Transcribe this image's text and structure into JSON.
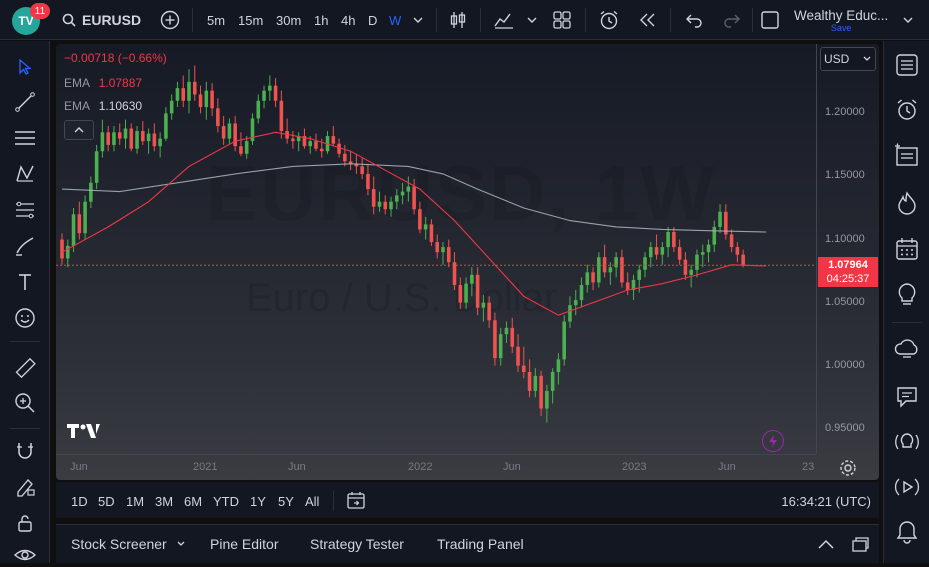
{
  "topbar": {
    "logo_text": "TV",
    "notif_count": "11",
    "symbol": "EURUSD",
    "intervals": [
      "5m",
      "15m",
      "30m",
      "1h",
      "4h",
      "D",
      "W"
    ],
    "active_interval": "W",
    "account": "Wealthy Educ...",
    "save_label": "Save"
  },
  "legend": {
    "change": "−0.00718 (−0.66%)",
    "ema1_label": "EMA",
    "ema1_value": "1.07887",
    "ema2_label": "EMA",
    "ema2_value": "1.10630"
  },
  "watermark": {
    "big": "EURUSD, 1W",
    "sub": "Euro / U.S. Dollar"
  },
  "currency": "USD",
  "price_axis": {
    "ticks": [
      "1.20000",
      "1.15000",
      "1.10000",
      "1.05000",
      "1.00000",
      "0.95000"
    ],
    "current_price": "1.07964",
    "countdown": "04:25:37"
  },
  "time_axis": {
    "labels": [
      "Jun",
      "2021",
      "Jun",
      "2022",
      "Jun",
      "2023",
      "Jun",
      "23"
    ]
  },
  "bottom_bar": {
    "ranges": [
      "1D",
      "5D",
      "1M",
      "3M",
      "6M",
      "YTD",
      "1Y",
      "5Y",
      "All"
    ],
    "clock": "16:34:21 (UTC)"
  },
  "panels": {
    "tabs": [
      "Stock Screener",
      "Pine Editor",
      "Strategy Tester",
      "Trading Panel"
    ]
  },
  "colors": {
    "up": "#26a69a",
    "up_bright": "#4caf50",
    "down": "#ef5350",
    "ema_fast": "#f23645",
    "ema_slow": "#b2b5be",
    "accent": "#2962ff"
  },
  "chart_data": {
    "type": "candlestick",
    "symbol": "EURUSD",
    "interval": "1W",
    "ylim": [
      0.93,
      1.255
    ],
    "x_domain": [
      0,
      123
    ],
    "current_price": 1.07964,
    "candles": [
      [
        1.1,
        1.105,
        1.08,
        1.085
      ],
      [
        1.085,
        1.1,
        1.078,
        1.095
      ],
      [
        1.095,
        1.125,
        1.09,
        1.12
      ],
      [
        1.12,
        1.13,
        1.1,
        1.105
      ],
      [
        1.105,
        1.135,
        1.1,
        1.13
      ],
      [
        1.13,
        1.15,
        1.125,
        1.145
      ],
      [
        1.145,
        1.175,
        1.14,
        1.17
      ],
      [
        1.17,
        1.195,
        1.165,
        1.185
      ],
      [
        1.185,
        1.19,
        1.17,
        1.175
      ],
      [
        1.175,
        1.19,
        1.17,
        1.185
      ],
      [
        1.185,
        1.192,
        1.175,
        1.18
      ],
      [
        1.18,
        1.195,
        1.172,
        1.188
      ],
      [
        1.188,
        1.192,
        1.17,
        1.172
      ],
      [
        1.172,
        1.19,
        1.168,
        1.186
      ],
      [
        1.186,
        1.194,
        1.175,
        1.178
      ],
      [
        1.178,
        1.188,
        1.168,
        1.184
      ],
      [
        1.184,
        1.192,
        1.17,
        1.174
      ],
      [
        1.174,
        1.185,
        1.165,
        1.18
      ],
      [
        1.18,
        1.205,
        1.178,
        1.2
      ],
      [
        1.2,
        1.215,
        1.195,
        1.21
      ],
      [
        1.21,
        1.225,
        1.205,
        1.22
      ],
      [
        1.22,
        1.23,
        1.205,
        1.21
      ],
      [
        1.21,
        1.235,
        1.2,
        1.225
      ],
      [
        1.225,
        1.238,
        1.21,
        1.215
      ],
      [
        1.215,
        1.222,
        1.2,
        1.205
      ],
      [
        1.205,
        1.225,
        1.195,
        1.218
      ],
      [
        1.218,
        1.224,
        1.198,
        1.204
      ],
      [
        1.204,
        1.212,
        1.185,
        1.19
      ],
      [
        1.19,
        1.198,
        1.175,
        1.18
      ],
      [
        1.18,
        1.196,
        1.176,
        1.192
      ],
      [
        1.192,
        1.198,
        1.17,
        1.174
      ],
      [
        1.174,
        1.185,
        1.166,
        1.168
      ],
      [
        1.168,
        1.182,
        1.164,
        1.178
      ],
      [
        1.178,
        1.2,
        1.175,
        1.196
      ],
      [
        1.196,
        1.215,
        1.192,
        1.21
      ],
      [
        1.21,
        1.222,
        1.204,
        1.218
      ],
      [
        1.218,
        1.23,
        1.21,
        1.222
      ],
      [
        1.222,
        1.228,
        1.205,
        1.21
      ],
      [
        1.21,
        1.218,
        1.18,
        1.186
      ],
      [
        1.186,
        1.196,
        1.176,
        1.18
      ],
      [
        1.18,
        1.186,
        1.172,
        1.178
      ],
      [
        1.178,
        1.185,
        1.17,
        1.182
      ],
      [
        1.182,
        1.188,
        1.172,
        1.174
      ],
      [
        1.174,
        1.182,
        1.168,
        1.178
      ],
      [
        1.178,
        1.184,
        1.17,
        1.172
      ],
      [
        1.172,
        1.18,
        1.165,
        1.17
      ],
      [
        1.17,
        1.186,
        1.168,
        1.182
      ],
      [
        1.182,
        1.19,
        1.174,
        1.176
      ],
      [
        1.176,
        1.18,
        1.165,
        1.168
      ],
      [
        1.168,
        1.175,
        1.158,
        1.162
      ],
      [
        1.162,
        1.17,
        1.155,
        1.16
      ],
      [
        1.16,
        1.168,
        1.152,
        1.158
      ],
      [
        1.158,
        1.165,
        1.148,
        1.152
      ],
      [
        1.152,
        1.16,
        1.135,
        1.14
      ],
      [
        1.14,
        1.15,
        1.12,
        1.126
      ],
      [
        1.126,
        1.138,
        1.122,
        1.13
      ],
      [
        1.13,
        1.135,
        1.12,
        1.124
      ],
      [
        1.124,
        1.134,
        1.118,
        1.13
      ],
      [
        1.13,
        1.14,
        1.124,
        1.135
      ],
      [
        1.135,
        1.145,
        1.128,
        1.138
      ],
      [
        1.138,
        1.15,
        1.13,
        1.142
      ],
      [
        1.142,
        1.148,
        1.12,
        1.124
      ],
      [
        1.124,
        1.13,
        1.105,
        1.108
      ],
      [
        1.108,
        1.118,
        1.1,
        1.112
      ],
      [
        1.112,
        1.116,
        1.095,
        1.098
      ],
      [
        1.098,
        1.104,
        1.085,
        1.09
      ],
      [
        1.09,
        1.098,
        1.08,
        1.094
      ],
      [
        1.094,
        1.1,
        1.078,
        1.082
      ],
      [
        1.082,
        1.09,
        1.06,
        1.064
      ],
      [
        1.064,
        1.07,
        1.045,
        1.05
      ],
      [
        1.05,
        1.07,
        1.045,
        1.065
      ],
      [
        1.065,
        1.078,
        1.055,
        1.072
      ],
      [
        1.072,
        1.078,
        1.04,
        1.046
      ],
      [
        1.046,
        1.056,
        1.035,
        1.05
      ],
      [
        1.05,
        1.055,
        1.03,
        1.036
      ],
      [
        1.036,
        1.042,
        1.0,
        1.006
      ],
      [
        1.006,
        1.03,
        1.0,
        1.025
      ],
      [
        1.025,
        1.035,
        1.018,
        1.03
      ],
      [
        1.03,
        1.038,
        1.01,
        1.015
      ],
      [
        1.015,
        1.025,
        0.995,
        1.0
      ],
      [
        1.0,
        1.015,
        0.99,
        0.995
      ],
      [
        0.995,
        1.005,
        0.975,
        0.98
      ],
      [
        0.98,
        0.998,
        0.975,
        0.992
      ],
      [
        0.992,
        0.996,
        0.96,
        0.966
      ],
      [
        0.966,
        0.985,
        0.955,
        0.98
      ],
      [
        0.98,
        0.998,
        0.97,
        0.995
      ],
      [
        0.995,
        1.01,
        0.985,
        1.005
      ],
      [
        1.005,
        1.04,
        1.0,
        1.035
      ],
      [
        1.035,
        1.055,
        1.03,
        1.048
      ],
      [
        1.048,
        1.06,
        1.04,
        1.052
      ],
      [
        1.052,
        1.07,
        1.046,
        1.064
      ],
      [
        1.064,
        1.08,
        1.058,
        1.074
      ],
      [
        1.074,
        1.078,
        1.06,
        1.066
      ],
      [
        1.066,
        1.09,
        1.062,
        1.086
      ],
      [
        1.086,
        1.096,
        1.07,
        1.074
      ],
      [
        1.074,
        1.082,
        1.064,
        1.078
      ],
      [
        1.078,
        1.09,
        1.07,
        1.086
      ],
      [
        1.086,
        1.092,
        1.062,
        1.066
      ],
      [
        1.066,
        1.074,
        1.056,
        1.06
      ],
      [
        1.06,
        1.072,
        1.052,
        1.068
      ],
      [
        1.068,
        1.08,
        1.058,
        1.076
      ],
      [
        1.076,
        1.09,
        1.07,
        1.086
      ],
      [
        1.086,
        1.098,
        1.078,
        1.094
      ],
      [
        1.094,
        1.104,
        1.084,
        1.088
      ],
      [
        1.088,
        1.098,
        1.08,
        1.094
      ],
      [
        1.094,
        1.11,
        1.086,
        1.106
      ],
      [
        1.106,
        1.11,
        1.09,
        1.094
      ],
      [
        1.094,
        1.1,
        1.08,
        1.084
      ],
      [
        1.084,
        1.09,
        1.068,
        1.072
      ],
      [
        1.072,
        1.08,
        1.062,
        1.076
      ],
      [
        1.076,
        1.092,
        1.07,
        1.088
      ],
      [
        1.088,
        1.096,
        1.078,
        1.09
      ],
      [
        1.09,
        1.1,
        1.082,
        1.096
      ],
      [
        1.096,
        1.115,
        1.09,
        1.11
      ],
      [
        1.11,
        1.128,
        1.105,
        1.122
      ],
      [
        1.122,
        1.128,
        1.1,
        1.104
      ],
      [
        1.104,
        1.108,
        1.09,
        1.094
      ],
      [
        1.094,
        1.098,
        1.082,
        1.088
      ],
      [
        1.088,
        1.092,
        1.078,
        1.08
      ]
    ],
    "ema_fast": [
      [
        0,
        1.09
      ],
      [
        8,
        1.11
      ],
      [
        15,
        1.13
      ],
      [
        22,
        1.158
      ],
      [
        30,
        1.178
      ],
      [
        37,
        1.185
      ],
      [
        43,
        1.18
      ],
      [
        50,
        1.17
      ],
      [
        56,
        1.155
      ],
      [
        62,
        1.14
      ],
      [
        68,
        1.115
      ],
      [
        74,
        1.085
      ],
      [
        80,
        1.055
      ],
      [
        86,
        1.04
      ],
      [
        92,
        1.05
      ],
      [
        98,
        1.06
      ],
      [
        104,
        1.065
      ],
      [
        110,
        1.072
      ],
      [
        116,
        1.08
      ],
      [
        122,
        1.079
      ]
    ],
    "ema_slow": [
      [
        0,
        1.14
      ],
      [
        10,
        1.138
      ],
      [
        20,
        1.145
      ],
      [
        30,
        1.152
      ],
      [
        40,
        1.158
      ],
      [
        50,
        1.16
      ],
      [
        60,
        1.158
      ],
      [
        66,
        1.152
      ],
      [
        72,
        1.14
      ],
      [
        80,
        1.125
      ],
      [
        88,
        1.115
      ],
      [
        96,
        1.11
      ],
      [
        104,
        1.108
      ],
      [
        112,
        1.107
      ],
      [
        122,
        1.106
      ]
    ]
  }
}
